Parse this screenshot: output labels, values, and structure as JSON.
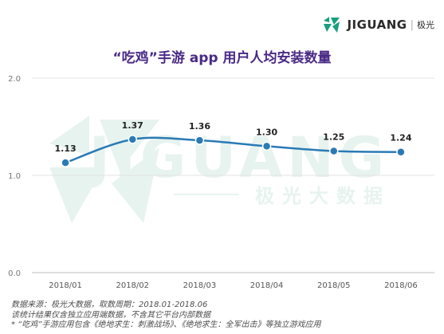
{
  "brand": {
    "name": "JIGUANG",
    "cn": "极光",
    "color": "#1a9e7e"
  },
  "watermark": {
    "text": "JIGUANG",
    "cn": "极光大数据"
  },
  "chart_data": {
    "type": "line",
    "title": "“吃鸡”手游 app 用户人均安装数量",
    "categories": [
      "2018/01",
      "2018/02",
      "2018/03",
      "2018/04",
      "2018/05",
      "2018/06"
    ],
    "series": [
      {
        "values": [
          1.13,
          1.37,
          1.36,
          1.3,
          1.25,
          1.24
        ],
        "color": "#2a7ab5"
      }
    ],
    "value_labels": [
      "1.13",
      "1.37",
      "1.36",
      "1.30",
      "1.25",
      "1.24"
    ],
    "y_ticks": [
      "0.0",
      "1.0",
      "2.0"
    ],
    "ylim": [
      0,
      2.0
    ],
    "grid": true,
    "legend": "none"
  },
  "notes": [
    "数据来源：极光大数据，取数周期：2018.01-2018.06",
    "该统计结果仅含独立应用端数据，不含其它平台内部数据",
    "* “吃鸡”手游应用包含《绝地求生：刺激战场》、《绝地求生：全军出击》等独立游戏应用"
  ]
}
